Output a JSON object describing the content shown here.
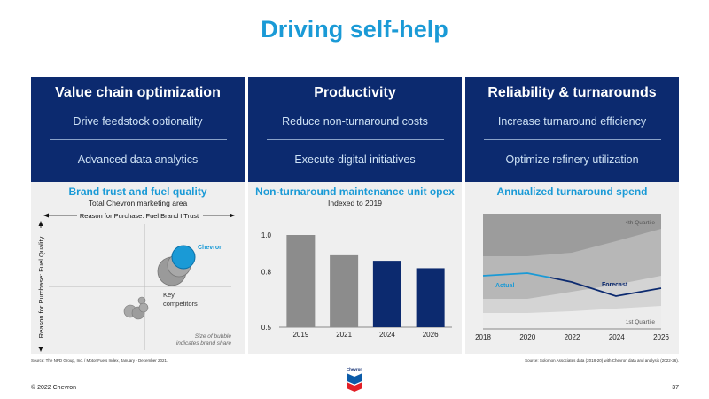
{
  "title": "Driving self-help",
  "columns": [
    {
      "heading": "Value chain optimization",
      "items": [
        "Drive feedstock optionality",
        "Advanced data analytics"
      ]
    },
    {
      "heading": "Productivity",
      "items": [
        "Reduce non-turnaround costs",
        "Execute digital initiatives"
      ]
    },
    {
      "heading": "Reliability & turnarounds",
      "items": [
        "Increase turnaround efficiency",
        "Optimize refinery utilization"
      ]
    }
  ],
  "brand": {
    "title": "Brand trust and fuel quality",
    "caption": "Total Chevron marketing area",
    "x_axis": "Reason for Purchase: Fuel Brand I Trust",
    "y_axis": "Reason for Purchase: Fuel Quality",
    "chevron_label": "Chevron",
    "competitors_label_1": "Key",
    "competitors_label_2": "competitors",
    "note_1": "Size of bubble",
    "note_2": "indicates brand share",
    "colors": {
      "chevron": "#1a9ad6",
      "competitors": "#9a9a9a"
    }
  },
  "chart_data": [
    {
      "type": "bar",
      "title": "Non-turnaround maintenance unit opex",
      "subtitle": "Indexed to 2019",
      "categories": [
        "2019",
        "2021",
        "2024",
        "2026"
      ],
      "values": [
        1.0,
        0.89,
        0.86,
        0.82
      ],
      "ylim": [
        0.5,
        1.0
      ],
      "yticks": [
        "0.5",
        "0.8",
        "1.0"
      ],
      "series_types": [
        "actual",
        "actual",
        "forecast",
        "forecast"
      ],
      "colors": {
        "actual": "#8c8c8c",
        "forecast": "#0c2a6f"
      }
    },
    {
      "type": "area",
      "title": "Annualized turnaround spend",
      "x_ticks": [
        "2018",
        "2020",
        "2022",
        "2024",
        "2026"
      ],
      "band_top_label": "4th Quartile",
      "band_bottom_label": "1st Quartile",
      "actual_label": "Actual",
      "forecast_label": "Forecast",
      "colors": {
        "actual": "#1a9ad6",
        "forecast": "#0c2a6f"
      }
    }
  ],
  "sources": {
    "left": "Source: The NPD Group, Inc. / Motor Fuels Index, January - December 2021.",
    "right": "Source: Solomon Associates data (2018-20) with Chevron data and analysis (2022-26)."
  },
  "footer": {
    "copyright": "© 2022 Chevron",
    "page": "37",
    "logo_text": "Chevron"
  }
}
